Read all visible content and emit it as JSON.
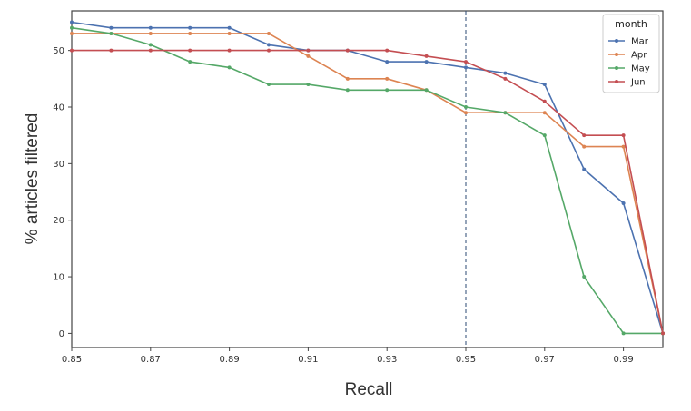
{
  "chart_data": {
    "type": "line",
    "title": "",
    "xlabel": "Recall",
    "ylabel": "% articles filtered",
    "xlim": [
      0.85,
      1.0
    ],
    "ylim": [
      -2.5,
      57
    ],
    "x_ticks": [
      "0.85",
      "0.87",
      "0.89",
      "0.91",
      "0.93",
      "0.95",
      "0.97",
      "0.99"
    ],
    "y_ticks": [
      "0",
      "10",
      "20",
      "30",
      "40",
      "50"
    ],
    "x": [
      0.85,
      0.86,
      0.87,
      0.88,
      0.89,
      0.9,
      0.91,
      0.92,
      0.93,
      0.94,
      0.95,
      0.96,
      0.97,
      0.98,
      0.99,
      1.0
    ],
    "vline": {
      "x": 0.95,
      "style": "dashed",
      "color": "#2b4a73"
    },
    "grid": false,
    "legend": {
      "title": "month",
      "placement": "top-right"
    },
    "series": [
      {
        "name": "Mar",
        "color": "#4c72b0",
        "values": [
          55,
          54,
          54,
          54,
          54,
          51,
          50,
          50,
          48,
          48,
          47,
          46,
          44,
          29,
          23,
          0
        ]
      },
      {
        "name": "Apr",
        "color": "#dd8452",
        "values": [
          53,
          53,
          53,
          53,
          53,
          53,
          49,
          45,
          45,
          43,
          39,
          39,
          39,
          33,
          33,
          0
        ]
      },
      {
        "name": "May",
        "color": "#55a868",
        "values": [
          54,
          53,
          51,
          48,
          47,
          44,
          44,
          43,
          43,
          43,
          40,
          39,
          35,
          10,
          0,
          0
        ]
      },
      {
        "name": "Jun",
        "color": "#c44e52",
        "values": [
          50,
          50,
          50,
          50,
          50,
          50,
          50,
          50,
          50,
          49,
          48,
          45,
          41,
          35,
          35,
          0
        ]
      }
    ]
  }
}
